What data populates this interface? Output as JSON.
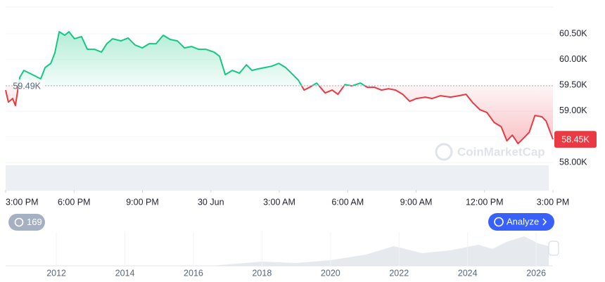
{
  "chart_data": {
    "type": "line",
    "x": [
      0,
      0.12,
      0.31,
      0.43,
      0.62,
      0.8,
      1.05,
      1.3,
      1.54,
      1.73,
      1.98,
      2.16,
      2.35,
      2.59,
      2.78,
      3.02,
      3.33,
      3.58,
      3.89,
      4.2,
      4.44,
      4.69,
      5.06,
      5.37,
      5.68,
      5.99,
      6.3,
      6.6,
      6.91,
      7.22,
      7.53,
      7.84,
      8.15,
      8.46,
      8.77,
      9.14,
      9.38,
      9.63,
      9.94,
      10.25,
      10.56,
      10.8,
      11.05,
      11.36,
      11.67,
      11.98,
      12.28,
      12.53,
      12.84,
      13.09,
      13.33,
      13.64,
      14.01,
      14.32,
      14.57,
      14.88,
      15.19,
      15.56,
      15.86,
      16.17,
      16.48,
      16.79,
      17.1,
      17.41,
      17.72,
      18.02,
      18.4,
      18.7,
      19.07,
      19.51,
      19.88,
      20.19,
      20.49,
      20.8,
      21.11,
      21.42,
      21.73,
      21.98,
      22.22,
      22.47,
      22.72,
      22.96,
      23.21,
      23.52,
      23.7,
      24
    ],
    "series": [
      {
        "name": "Price",
        "values": [
          59407,
          59175,
          59243,
          59107,
          59653,
          59790,
          59735,
          59680,
          59626,
          59844,
          59926,
          60131,
          60541,
          60473,
          60541,
          60404,
          60445,
          60199,
          60199,
          60145,
          60309,
          60404,
          60363,
          60418,
          60281,
          60227,
          60309,
          60309,
          60473,
          60391,
          60363,
          60227,
          60254,
          60199,
          60199,
          60145,
          60063,
          59708,
          59790,
          59735,
          59899,
          59790,
          59817,
          59844,
          59872,
          59926,
          59844,
          59735,
          59598,
          59407,
          59462,
          59544,
          59352,
          59407,
          59325,
          59516,
          59489,
          59544,
          59462,
          59462,
          59407,
          59434,
          59407,
          59325,
          59189,
          59243,
          59271,
          59243,
          59298,
          59271,
          59298,
          59325,
          59161,
          59025,
          58970,
          58779,
          58697,
          58423,
          58532,
          58369,
          58478,
          58587,
          58915,
          58888,
          58806,
          58450
        ]
      }
    ],
    "above_color": "#16c784",
    "below_color": "#ea3943",
    "baseline": {
      "value": 59490,
      "label": "59.49K"
    },
    "last_price": {
      "value": 58450,
      "label": "58.45K"
    },
    "xlim": [
      0,
      24
    ],
    "xticks": [
      {
        "value": 0,
        "label": "3:00 PM"
      },
      {
        "value": 3,
        "label": "6:00 PM"
      },
      {
        "value": 6,
        "label": "9:00 PM"
      },
      {
        "value": 9,
        "label": "30 Jun"
      },
      {
        "value": 12,
        "label": "3:00 AM"
      },
      {
        "value": 15,
        "label": "6:00 AM"
      },
      {
        "value": 18,
        "label": "9:00 AM"
      },
      {
        "value": 21,
        "label": "12:00 PM"
      },
      {
        "value": 24,
        "label": "3:00 PM"
      }
    ],
    "ylim": [
      57470,
      61020
    ],
    "yticks": [
      {
        "value": 58000,
        "label": "58.00K"
      },
      {
        "value": 58500,
        "label": "58.50K"
      },
      {
        "value": 59000,
        "label": "59.00K"
      },
      {
        "value": 59500,
        "label": "59.50K"
      },
      {
        "value": 60000,
        "label": "60.00K"
      },
      {
        "value": 60500,
        "label": "60.50K"
      }
    ],
    "grid": true,
    "watermark": "CoinMarketCap"
  },
  "navigator": {
    "xlim": [
      2010.52,
      2026.49
    ],
    "xticks": [
      2012,
      2014,
      2016,
      2018,
      2020,
      2022,
      2024,
      2026
    ]
  },
  "buttons": {
    "history": 169,
    "analyze": "Analyze"
  }
}
